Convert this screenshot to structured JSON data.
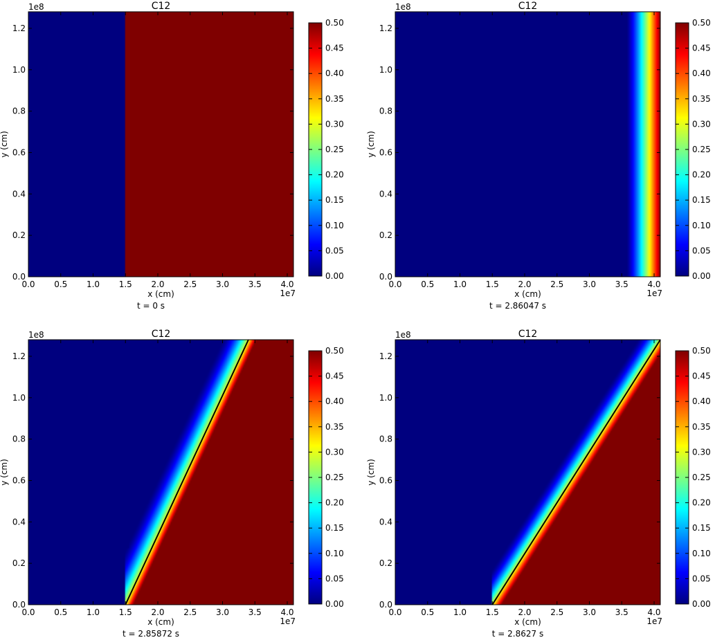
{
  "figure": {
    "colormap": "jet",
    "colormap_stops": [
      "#00007f",
      "#0000ff",
      "#007fff",
      "#00ffff",
      "#7fff7f",
      "#ffff00",
      "#ff7f00",
      "#ff0000",
      "#7f0000"
    ]
  },
  "chart_data": [
    {
      "type": "heatmap",
      "title": "C12",
      "xlabel": "x (cm)",
      "ylabel": "y (cm)",
      "x_exponent": "1e7",
      "y_exponent": "1e8",
      "xlim": [
        0.0,
        4.096
      ],
      "ylim": [
        0.0,
        1.28
      ],
      "xticks": [
        "0.0",
        "0.5",
        "1.0",
        "1.5",
        "2.0",
        "2.5",
        "3.0",
        "3.5",
        "4.0"
      ],
      "yticks": [
        "0.0",
        "0.2",
        "0.4",
        "0.6",
        "0.8",
        "1.0",
        "1.2"
      ],
      "colorbar": {
        "range": [
          0.0,
          0.5
        ],
        "ticks": [
          "0.00",
          "0.05",
          "0.10",
          "0.15",
          "0.20",
          "0.25",
          "0.30",
          "0.35",
          "0.40",
          "0.45",
          "0.50"
        ]
      },
      "time_label": "t = 0 s",
      "field": {
        "kind": "step",
        "interface_x": 1.5,
        "min_value": 0.0,
        "max_value": 0.5,
        "transition_width": 0.0
      }
    },
    {
      "type": "heatmap",
      "title": "C12",
      "xlabel": "x (cm)",
      "ylabel": "y (cm)",
      "x_exponent": "1e7",
      "y_exponent": "1e8",
      "xlim": [
        0.0,
        4.096
      ],
      "ylim": [
        0.0,
        1.28
      ],
      "xticks": [
        "0.0",
        "0.5",
        "1.0",
        "1.5",
        "2.0",
        "2.5",
        "3.0",
        "3.5",
        "4.0"
      ],
      "yticks": [
        "0.0",
        "0.2",
        "0.4",
        "0.6",
        "0.8",
        "1.0",
        "1.2"
      ],
      "colorbar": {
        "range": [
          0.0,
          0.5
        ],
        "ticks": [
          "0.00",
          "0.05",
          "0.10",
          "0.15",
          "0.20",
          "0.25",
          "0.30",
          "0.35",
          "0.40",
          "0.45",
          "0.50"
        ]
      },
      "time_label": "t = 2.86047 s",
      "field": {
        "kind": "ramp",
        "start_x": 3.58,
        "end_x": 4.096,
        "min_value": 0.0,
        "max_value": 0.5
      }
    },
    {
      "type": "heatmap",
      "title": "C12",
      "xlabel": "x (cm)",
      "ylabel": "y (cm)",
      "x_exponent": "1e7",
      "y_exponent": "1e8",
      "xlim": [
        0.0,
        4.096
      ],
      "ylim": [
        0.0,
        1.28
      ],
      "xticks": [
        "0.0",
        "0.5",
        "1.0",
        "1.5",
        "2.0",
        "2.5",
        "3.0",
        "3.5",
        "4.0"
      ],
      "yticks": [
        "0.0",
        "0.2",
        "0.4",
        "0.6",
        "0.8",
        "1.0",
        "1.2"
      ],
      "colorbar": {
        "range": [
          0.0,
          0.5
        ],
        "ticks": [
          "0.00",
          "0.05",
          "0.10",
          "0.15",
          "0.20",
          "0.25",
          "0.30",
          "0.35",
          "0.40",
          "0.45",
          "0.50"
        ]
      },
      "time_label": "t = 2.85872 s",
      "field": {
        "kind": "oblique",
        "line": [
          [
            1.5,
            0.0
          ],
          [
            3.4,
            1.28
          ]
        ],
        "base_x": 1.5,
        "base_top_y": 0.27,
        "upstream_width": 0.4,
        "downstream_width": 0.12,
        "min_value": 0.0,
        "max_value": 0.5
      }
    },
    {
      "type": "heatmap",
      "title": "C12",
      "xlabel": "x (cm)",
      "ylabel": "y (cm)",
      "x_exponent": "1e7",
      "y_exponent": "1e8",
      "xlim": [
        0.0,
        4.096
      ],
      "ylim": [
        0.0,
        1.28
      ],
      "xticks": [
        "0.0",
        "0.5",
        "1.0",
        "1.5",
        "2.0",
        "2.5",
        "3.0",
        "3.5",
        "4.0"
      ],
      "yticks": [
        "0.0",
        "0.2",
        "0.4",
        "0.6",
        "0.8",
        "1.0",
        "1.2"
      ],
      "colorbar": {
        "range": [
          0.0,
          0.5
        ],
        "ticks": [
          "0.00",
          "0.05",
          "0.10",
          "0.15",
          "0.20",
          "0.25",
          "0.30",
          "0.35",
          "0.40",
          "0.45",
          "0.50"
        ]
      },
      "time_label": "t = 2.8627 s",
      "field": {
        "kind": "oblique",
        "line": [
          [
            1.5,
            0.0
          ],
          [
            4.096,
            1.28
          ]
        ],
        "base_x": 1.5,
        "base_top_y": 0.19,
        "upstream_width": 0.35,
        "downstream_width": 0.14,
        "min_value": 0.0,
        "max_value": 0.5
      }
    }
  ]
}
